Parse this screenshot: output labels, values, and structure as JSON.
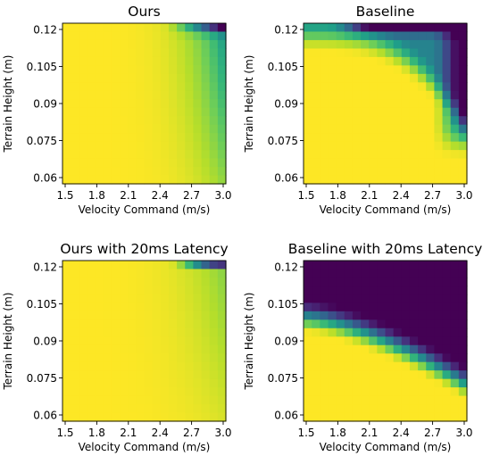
{
  "colormap": {
    "name": "viridis",
    "stops": [
      "#440154",
      "#482878",
      "#3e4989",
      "#31688e",
      "#26828e",
      "#1f9e89",
      "#35b779",
      "#6ece58",
      "#b5de2b",
      "#fde725"
    ]
  },
  "chart_data": [
    {
      "type": "heatmap",
      "title": "Ours",
      "xlabel": "Velocity Command (m/s)",
      "ylabel": "Terrain Height (m)",
      "xticks": [
        "1.5",
        "1.8",
        "2.1",
        "2.4",
        "2.7",
        "3.0"
      ],
      "yticks": [
        "0.06",
        "0.075",
        "0.09",
        "0.105",
        "0.12"
      ],
      "xlim": [
        1.5,
        3.0
      ],
      "ylim": [
        0.06,
        0.12
      ],
      "value_range": [
        0,
        1
      ],
      "grid": false,
      "pattern": "ours"
    },
    {
      "type": "heatmap",
      "title": "Baseline",
      "xlabel": "Velocity Command (m/s)",
      "ylabel": "Terrain Height (m)",
      "xticks": [
        "1.5",
        "1.8",
        "2.1",
        "2.4",
        "2.7",
        "3.0"
      ],
      "yticks": [
        "0.06",
        "0.075",
        "0.09",
        "0.105",
        "0.12"
      ],
      "xlim": [
        1.5,
        3.0
      ],
      "ylim": [
        0.06,
        0.12
      ],
      "value_range": [
        0,
        1
      ],
      "grid": false,
      "pattern": "baseline"
    },
    {
      "type": "heatmap",
      "title": "Ours with 20ms Latency",
      "xlabel": "Velocity Command (m/s)",
      "ylabel": "Terrain Height (m)",
      "xticks": [
        "1.5",
        "1.8",
        "2.1",
        "2.4",
        "2.7",
        "3.0"
      ],
      "yticks": [
        "0.06",
        "0.075",
        "0.09",
        "0.105",
        "0.12"
      ],
      "xlim": [
        1.5,
        3.0
      ],
      "ylim": [
        0.06,
        0.12
      ],
      "value_range": [
        0,
        1
      ],
      "grid": false,
      "pattern": "ours_latency"
    },
    {
      "type": "heatmap",
      "title": "Baseline with 20ms Latency",
      "xlabel": "Velocity Command (m/s)",
      "ylabel": "Terrain Height (m)",
      "xticks": [
        "1.5",
        "1.8",
        "2.1",
        "2.4",
        "2.7",
        "3.0"
      ],
      "yticks": [
        "0.06",
        "0.075",
        "0.09",
        "0.105",
        "0.12"
      ],
      "xlim": [
        1.5,
        3.0
      ],
      "ylim": [
        0.06,
        0.12
      ],
      "value_range": [
        0,
        1
      ],
      "grid": false,
      "pattern": "baseline_latency"
    }
  ]
}
